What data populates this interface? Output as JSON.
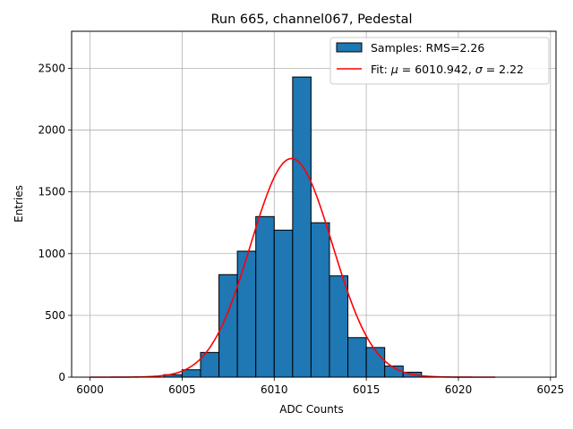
{
  "chart_data": {
    "type": "bar",
    "title": "Run 665, channel067, Pedestal",
    "xlabel": "ADC Counts",
    "ylabel": "Entries",
    "xlim": [
      5999,
      6025.3
    ],
    "ylim": [
      0,
      2800
    ],
    "xticks": [
      6000,
      6005,
      6010,
      6015,
      6020,
      6025
    ],
    "yticks": [
      0,
      500,
      1000,
      1500,
      2000,
      2500
    ],
    "grid": true,
    "legend_position": "top-right",
    "histogram": {
      "name": "Samples: RMS=2.26",
      "bin_width": 1,
      "bin_starts": [
        6004,
        6005,
        6006,
        6007,
        6008,
        6009,
        6010,
        6011,
        6012,
        6013,
        6014,
        6015,
        6016,
        6017
      ],
      "values": [
        20,
        60,
        200,
        830,
        1020,
        1300,
        1190,
        2430,
        1250,
        820,
        320,
        240,
        90,
        40
      ],
      "fill_color": "#1f77b4",
      "edge_color": "#000000"
    },
    "fit": {
      "name": "Fit: μ = 6010.942, σ = 2.22",
      "name_parts": [
        "Fit: ",
        "μ",
        " = 6010.942, ",
        "σ",
        " = 2.22"
      ],
      "mu": 6010.942,
      "sigma": 2.22,
      "amplitude": 1770,
      "x_range": [
        6000,
        6022
      ],
      "color": "#ff0000"
    }
  }
}
